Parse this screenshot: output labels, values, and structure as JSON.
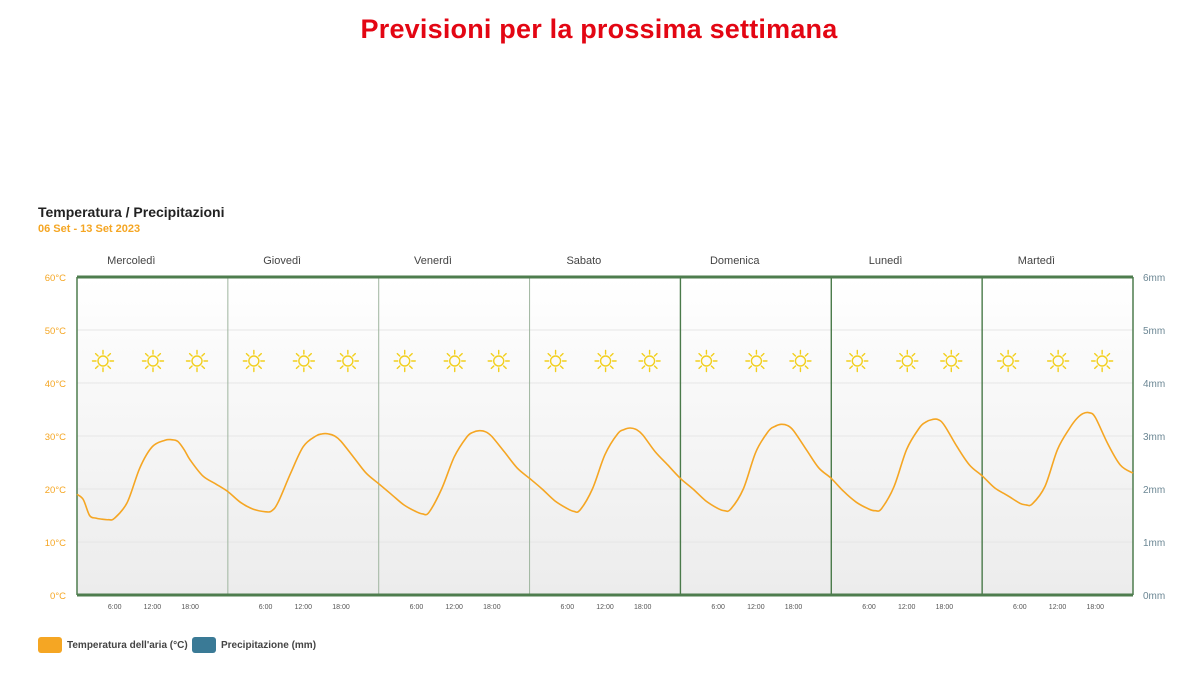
{
  "page": {
    "heading": "Previsioni per la prossima settimana"
  },
  "chart_data": {
    "type": "line",
    "title": "Temperatura / Precipitazioni",
    "subtitle": "06 Set - 13 Set 2023",
    "days": [
      "Mercoledì",
      "Giovedì",
      "Venerdì",
      "Sabato",
      "Domenica",
      "Lunedì",
      "Martedì"
    ],
    "x_tick_labels": [
      "6:00",
      "12:00",
      "18:00"
    ],
    "y_left": {
      "ticks": [
        "0°C",
        "10°C",
        "20°C",
        "30°C",
        "40°C",
        "50°C",
        "60°C"
      ],
      "range": [
        0,
        60
      ],
      "unit": "°C"
    },
    "y_right": {
      "ticks": [
        "0mm",
        "1mm",
        "2mm",
        "3mm",
        "4mm",
        "5mm",
        "6mm"
      ],
      "range": [
        0,
        6
      ],
      "unit": "mm"
    },
    "weather_icon": "sun-icon",
    "icons_per_day": 3,
    "series": [
      {
        "name": "Temperatura dell'aria (°C)",
        "color": "#f5a623",
        "hours": [
          0,
          1,
          2,
          3,
          4,
          5,
          6,
          8,
          10,
          12,
          14,
          15,
          16,
          17,
          18,
          20,
          22,
          24,
          26,
          28,
          30,
          31,
          32,
          34,
          36,
          38,
          39,
          40,
          41,
          42,
          44,
          46,
          48,
          50,
          52,
          54,
          55,
          56,
          58,
          60,
          62,
          63,
          64,
          65,
          66,
          68,
          70,
          72,
          74,
          76,
          78,
          79,
          80,
          82,
          84,
          86,
          87,
          88,
          89,
          90,
          92,
          94,
          96,
          98,
          100,
          102,
          103,
          104,
          106,
          108,
          110,
          111,
          112,
          113,
          114,
          116,
          118,
          120,
          122,
          124,
          126,
          127,
          128,
          130,
          132,
          134,
          135,
          136,
          137,
          138,
          140,
          142,
          144,
          146,
          148,
          150,
          151,
          152,
          154,
          156,
          158,
          159,
          160,
          161,
          162,
          164,
          166,
          168
        ],
        "values": [
          19.0,
          18.0,
          15.0,
          14.5,
          14.3,
          14.2,
          14.5,
          17.5,
          24.0,
          28.0,
          29.2,
          29.3,
          29.0,
          27.5,
          25.5,
          22.5,
          21.0,
          19.5,
          17.5,
          16.2,
          15.7,
          15.9,
          17.5,
          23.0,
          28.0,
          30.0,
          30.4,
          30.4,
          30.0,
          29.0,
          26.0,
          23.0,
          21.0,
          19.0,
          17.0,
          15.7,
          15.3,
          15.6,
          20.0,
          26.0,
          29.8,
          30.7,
          31.0,
          30.8,
          29.9,
          27.0,
          24.0,
          22.0,
          20.0,
          17.8,
          16.3,
          15.8,
          16.0,
          20.0,
          26.5,
          30.4,
          31.2,
          31.5,
          31.2,
          30.2,
          27.0,
          24.5,
          22.0,
          20.0,
          17.8,
          16.3,
          15.9,
          16.2,
          20.0,
          27.0,
          30.9,
          31.8,
          32.2,
          32.0,
          31.0,
          27.5,
          24.0,
          22.0,
          19.5,
          17.5,
          16.2,
          15.9,
          16.3,
          20.5,
          27.5,
          31.5,
          32.6,
          33.1,
          33.1,
          32.0,
          28.0,
          24.5,
          22.5,
          20.2,
          18.8,
          17.3,
          17.0,
          17.2,
          20.5,
          27.5,
          31.6,
          33.2,
          34.2,
          34.4,
          33.5,
          28.5,
          24.5,
          23.0
        ]
      },
      {
        "name": "Precipitazione (mm)",
        "color": "#3a7a96",
        "values": []
      }
    ],
    "legend": [
      {
        "label": "Temperatura dell'aria (°C)",
        "color": "#f5a623"
      },
      {
        "label": "Precipitazione (mm)",
        "color": "#3a7a96"
      }
    ]
  }
}
